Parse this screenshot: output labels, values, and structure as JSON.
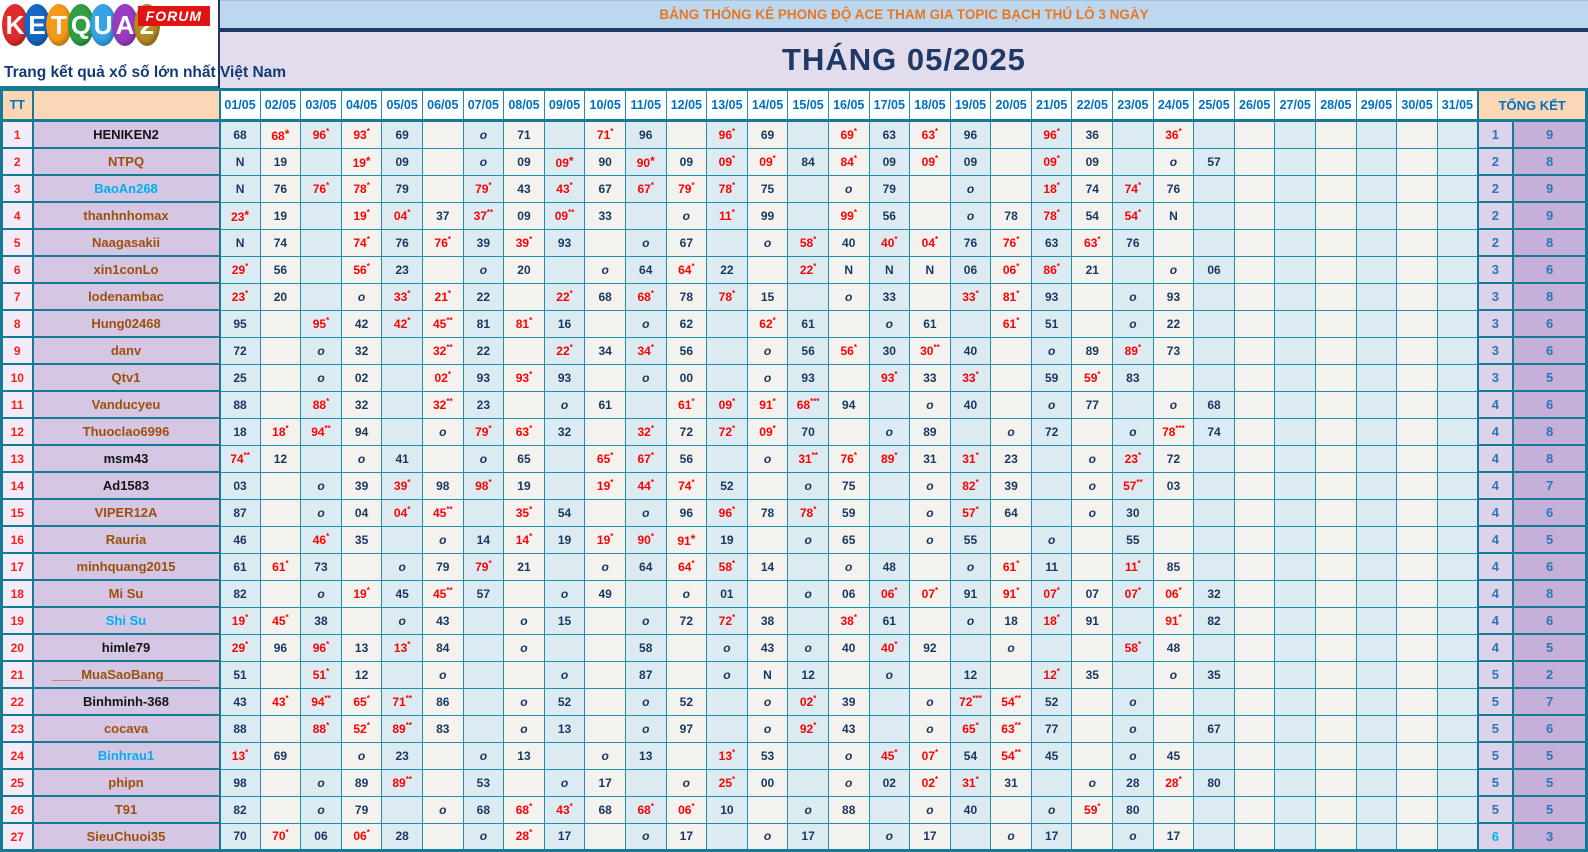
{
  "logo": {
    "letters": [
      {
        "ch": "K",
        "color": "#e02b2b"
      },
      {
        "ch": "E",
        "color": "#1767c5"
      },
      {
        "ch": "T",
        "color": "#f59a18"
      },
      {
        "ch": "Q",
        "color": "#2ea043"
      },
      {
        "ch": "U",
        "color": "#36a3e8"
      },
      {
        "ch": "A",
        "color": "#9b3bbf"
      },
      {
        "ch": "2",
        "color": "#b68a1f"
      }
    ],
    "forum_label": "FORUM",
    "tagline": "Trang kết quả xổ số lớn nhất Việt Nam"
  },
  "banner": {
    "subtitle": "BẢNG THỐNG KÊ PHONG ĐỘ ACE THAM GIA TOPIC BẠCH THỦ LÔ 3 NGÀY",
    "title": "THÁNG 05/2025"
  },
  "colors": {
    "grid_teal": "#157a96",
    "value_navy": "#17375e",
    "value_red": "#fe0000",
    "header_blue": "#0070c0",
    "summary_blue": "#2e75b6",
    "peach": "#fbd7b5",
    "name_bg": "#d5c6e4",
    "banner_top_bg": "#bdd7ee",
    "banner_title_bg": "#e2dcec",
    "banner_text_orange": "#e87722"
  },
  "table": {
    "tt_header": "TT",
    "summary_header": "TỔNG KẾT",
    "dates": [
      "01/05",
      "02/05",
      "03/05",
      "04/05",
      "05/05",
      "06/05",
      "07/05",
      "08/05",
      "09/05",
      "10/05",
      "11/05",
      "12/05",
      "13/05",
      "14/05",
      "15/05",
      "16/05",
      "17/05",
      "18/05",
      "19/05",
      "20/05",
      "21/05",
      "22/05",
      "23/05",
      "24/05",
      "25/05",
      "26/05",
      "27/05",
      "28/05",
      "29/05",
      "30/05",
      "31/05"
    ],
    "inline_star_cells": [
      "1-2",
      "2-4",
      "2-9",
      "2-11",
      "4-1",
      "16-12"
    ],
    "rows": [
      {
        "tt": "1",
        "name": "HENIKEN2",
        "name_color": "black",
        "days": [
          "68",
          "68*",
          "96*",
          "93*",
          "69",
          "",
          "o",
          "71",
          "",
          "71*",
          "96",
          "",
          "96*",
          "69",
          "",
          "69*",
          "63",
          "63*",
          "96",
          "",
          "96*",
          "36",
          "",
          "36*",
          "",
          "",
          "",
          "",
          "",
          "",
          ""
        ],
        "tk": [
          "1",
          "9"
        ]
      },
      {
        "tt": "2",
        "name": "NTPQ",
        "name_color": "brown",
        "days": [
          "N",
          "19",
          "",
          "19*",
          "09",
          "",
          "o",
          "09",
          "09*",
          "90",
          "90*",
          "09",
          "09*",
          "09*",
          "84",
          "84*",
          "09",
          "09*",
          "09",
          "",
          "09*",
          "09",
          "",
          "o",
          "57",
          "",
          "",
          "",
          "",
          "",
          ""
        ],
        "tk": [
          "2",
          "8"
        ]
      },
      {
        "tt": "3",
        "name": "BaoAn268",
        "name_color": "cyan",
        "days": [
          "N",
          "76",
          "76*",
          "78*",
          "79",
          "",
          "79*",
          "43",
          "43*",
          "67",
          "67*",
          "79*",
          "78*",
          "75",
          "",
          "o",
          "79",
          "",
          "o",
          "",
          "18*",
          "74",
          "74*",
          "76",
          "",
          "",
          "",
          "",
          "",
          "",
          ""
        ],
        "tk": [
          "2",
          "9"
        ]
      },
      {
        "tt": "4",
        "name": "thanhnhomax",
        "name_color": "brown",
        "days": [
          "23*",
          "19",
          "",
          "19*",
          "04*",
          "37",
          "37**",
          "09",
          "09**",
          "33",
          "",
          "o",
          "11*",
          "99",
          "",
          "99*",
          "56",
          "",
          "o",
          "78",
          "78*",
          "54",
          "54*",
          "N",
          "",
          "",
          "",
          "",
          "",
          "",
          ""
        ],
        "tk": [
          "2",
          "9"
        ]
      },
      {
        "tt": "5",
        "name": "Naagasakii",
        "name_color": "brown",
        "days": [
          "N",
          "74",
          "",
          "74*",
          "76",
          "76*",
          "39",
          "39*",
          "93",
          "",
          "o",
          "67",
          "",
          "o",
          "58*",
          "40",
          "40*",
          "04*",
          "76",
          "76*",
          "63",
          "63*",
          "76",
          "",
          "",
          "",
          "",
          "",
          "",
          "",
          ""
        ],
        "tk": [
          "2",
          "8"
        ]
      },
      {
        "tt": "6",
        "name": "xin1conLo",
        "name_color": "brown",
        "days": [
          "29*",
          "56",
          "",
          "56*",
          "23",
          "",
          "o",
          "20",
          "",
          "o",
          "64",
          "64*",
          "22",
          "",
          "22*",
          "N",
          "N",
          "N",
          "06",
          "06*",
          "86*",
          "21",
          "",
          "o",
          "06",
          "",
          "",
          "",
          "",
          "",
          ""
        ],
        "tk": [
          "3",
          "6"
        ]
      },
      {
        "tt": "7",
        "name": "lodenambac",
        "name_color": "brown",
        "days": [
          "23*",
          "20",
          "",
          "o",
          "33*",
          "21*",
          "22",
          "",
          "22*",
          "68",
          "68*",
          "78",
          "78*",
          "15",
          "",
          "o",
          "33",
          "",
          "33*",
          "81*",
          "93",
          "",
          "o",
          "93",
          "",
          "",
          "",
          "",
          "",
          "",
          ""
        ],
        "tk": [
          "3",
          "8"
        ]
      },
      {
        "tt": "8",
        "name": "Hung02468",
        "name_color": "brown",
        "days": [
          "95",
          "",
          "95*",
          "42",
          "42*",
          "45**",
          "81",
          "81*",
          "16",
          "",
          "o",
          "62",
          "",
          "62*",
          "61",
          "",
          "o",
          "61",
          "",
          "61*",
          "51",
          "",
          "o",
          "22",
          "",
          "",
          "",
          "",
          "",
          "",
          ""
        ],
        "tk": [
          "3",
          "6"
        ]
      },
      {
        "tt": "9",
        "name": "danv",
        "name_color": "brown",
        "days": [
          "72",
          "",
          "o",
          "32",
          "",
          "32**",
          "22",
          "",
          "22*",
          "34",
          "34*",
          "56",
          "",
          "o",
          "56",
          "56*",
          "30",
          "30**",
          "40",
          "",
          "o",
          "89",
          "89*",
          "73",
          "",
          "",
          "",
          "",
          "",
          "",
          ""
        ],
        "tk": [
          "3",
          "6"
        ]
      },
      {
        "tt": "10",
        "name": "Qtv1",
        "name_color": "brown",
        "days": [
          "25",
          "",
          "o",
          "02",
          "",
          "02*",
          "93",
          "93*",
          "93",
          "",
          "o",
          "00",
          "",
          "o",
          "93",
          "",
          "93*",
          "33",
          "33*",
          "",
          "59",
          "59*",
          "83",
          "",
          "",
          "",
          "",
          "",
          "",
          "",
          ""
        ],
        "tk": [
          "3",
          "5"
        ]
      },
      {
        "tt": "11",
        "name": "Vanducyeu",
        "name_color": "brown",
        "days": [
          "88",
          "",
          "88*",
          "32",
          "",
          "32**",
          "23",
          "",
          "o",
          "61",
          "",
          "61*",
          "09*",
          "91*",
          "68***",
          "94",
          "",
          "o",
          "40",
          "",
          "o",
          "77",
          "",
          "o",
          "68",
          "",
          "",
          "",
          "",
          "",
          ""
        ],
        "tk": [
          "4",
          "6"
        ]
      },
      {
        "tt": "12",
        "name": "Thuoclao6996",
        "name_color": "brown",
        "days": [
          "18",
          "18*",
          "94**",
          "94",
          "",
          "o",
          "79*",
          "63*",
          "32",
          "",
          "32*",
          "72",
          "72*",
          "09*",
          "70",
          "",
          "o",
          "89",
          "",
          "o",
          "72",
          "",
          "o",
          "78***",
          "74",
          "",
          "",
          "",
          "",
          "",
          ""
        ],
        "tk": [
          "4",
          "8"
        ]
      },
      {
        "tt": "13",
        "name": "msm43",
        "name_color": "black",
        "days": [
          "74**",
          "12",
          "",
          "o",
          "41",
          "",
          "o",
          "65",
          "",
          "65*",
          "67*",
          "56",
          "",
          "o",
          "31**",
          "76*",
          "89*",
          "31",
          "31*",
          "23",
          "",
          "o",
          "23*",
          "72",
          "",
          "",
          "",
          "",
          "",
          "",
          ""
        ],
        "tk": [
          "4",
          "8"
        ]
      },
      {
        "tt": "14",
        "name": "Ad1583",
        "name_color": "black",
        "days": [
          "03",
          "",
          "o",
          "39",
          "39*",
          "98",
          "98*",
          "19",
          "",
          "19*",
          "44*",
          "74*",
          "52",
          "",
          "o",
          "75",
          "",
          "o",
          "82*",
          "39",
          "",
          "o",
          "57**",
          "03",
          "",
          "",
          "",
          "",
          "",
          "",
          ""
        ],
        "tk": [
          "4",
          "7"
        ]
      },
      {
        "tt": "15",
        "name": "VIPER12A",
        "name_color": "brown",
        "days": [
          "87",
          "",
          "o",
          "04",
          "04*",
          "45**",
          "",
          "35*",
          "54",
          "",
          "o",
          "96",
          "96*",
          "78",
          "78*",
          "59",
          "",
          "o",
          "57*",
          "64",
          "",
          "o",
          "30",
          "",
          "",
          "",
          "",
          "",
          "",
          "",
          ""
        ],
        "tk": [
          "4",
          "6"
        ]
      },
      {
        "tt": "16",
        "name": "Rauria",
        "name_color": "brown",
        "days": [
          "46",
          "",
          "46*",
          "35",
          "",
          "o",
          "14",
          "14*",
          "19",
          "19*",
          "90*",
          "91*",
          "19",
          "",
          "o",
          "65",
          "",
          "o",
          "55",
          "",
          "o",
          "",
          "55",
          "",
          "",
          "",
          "",
          "",
          "",
          "",
          ""
        ],
        "tk": [
          "4",
          "5"
        ]
      },
      {
        "tt": "17",
        "name": "minhquang2015",
        "name_color": "brown",
        "days": [
          "61",
          "61*",
          "73",
          "",
          "o",
          "79",
          "79*",
          "21",
          "",
          "o",
          "64",
          "64*",
          "58*",
          "14",
          "",
          "o",
          "48",
          "",
          "o",
          "61*",
          "11",
          "",
          "11*",
          "85",
          "",
          "",
          "",
          "",
          "",
          "",
          ""
        ],
        "tk": [
          "4",
          "6"
        ]
      },
      {
        "tt": "18",
        "name": "Mi Su",
        "name_color": "brown",
        "days": [
          "82",
          "",
          "o",
          "19*",
          "45",
          "45**",
          "57",
          "",
          "o",
          "49",
          "",
          "o",
          "01",
          "",
          "o",
          "06",
          "06*",
          "07*",
          "91",
          "91*",
          "07*",
          "07",
          "07*",
          "06*",
          "32",
          "",
          "",
          "",
          "",
          "",
          ""
        ],
        "tk": [
          "4",
          "8"
        ]
      },
      {
        "tt": "19",
        "name": "Shi Su",
        "name_color": "cyan",
        "days": [
          "19*",
          "45*",
          "38",
          "",
          "o",
          "43",
          "",
          "o",
          "15",
          "",
          "o",
          "72",
          "72*",
          "38",
          "",
          "38*",
          "61",
          "",
          "o",
          "18",
          "18*",
          "91",
          "",
          "91*",
          "82",
          "",
          "",
          "",
          "",
          "",
          ""
        ],
        "tk": [
          "4",
          "6"
        ]
      },
      {
        "tt": "20",
        "name": "himle79",
        "name_color": "black",
        "days": [
          "29*",
          "96",
          "96*",
          "13",
          "13*",
          "84",
          "",
          "o",
          "",
          "",
          "58",
          "",
          "o",
          "43",
          "o",
          "40",
          "40*",
          "92",
          "",
          "o",
          "",
          "",
          "58*",
          "48",
          "",
          "",
          "",
          "",
          "",
          "",
          ""
        ],
        "tk": [
          "4",
          "5"
        ]
      },
      {
        "tt": "21",
        "name": "____MuaSaoBang_____",
        "name_color": "brown",
        "days": [
          "51",
          "",
          "51*",
          "12",
          "",
          "o",
          "",
          "",
          "o",
          "",
          "87",
          "",
          "o",
          "N",
          "12",
          "",
          "o",
          "",
          "12",
          "",
          "12*",
          "35",
          "",
          "o",
          "35",
          "",
          "",
          "",
          "",
          "",
          ""
        ],
        "tk": [
          "5",
          "2"
        ]
      },
      {
        "tt": "22",
        "name": "Binhminh-368",
        "name_color": "black",
        "days": [
          "43",
          "43*",
          "94**",
          "65*",
          "71**",
          "86",
          "",
          "o",
          "52",
          "",
          "o",
          "52",
          "",
          "o",
          "02*",
          "39",
          "",
          "o",
          "72***",
          "54**",
          "52",
          "",
          "o",
          "",
          "",
          "",
          "",
          "",
          "",
          "",
          ""
        ],
        "tk": [
          "5",
          "7"
        ]
      },
      {
        "tt": "23",
        "name": "cocava",
        "name_color": "brown",
        "days": [
          "88",
          "",
          "88*",
          "52*",
          "89**",
          "83",
          "",
          "o",
          "13",
          "",
          "o",
          "97",
          "",
          "o",
          "92*",
          "43",
          "",
          "o",
          "65*",
          "63**",
          "77",
          "",
          "o",
          "",
          "67",
          "",
          "",
          "",
          "",
          "",
          ""
        ],
        "tk": [
          "5",
          "6"
        ]
      },
      {
        "tt": "24",
        "name": "Binhrau1",
        "name_color": "cyan",
        "days": [
          "13*",
          "69",
          "",
          "o",
          "23",
          "",
          "o",
          "13",
          "",
          "o",
          "13",
          "",
          "13*",
          "53",
          "",
          "o",
          "45*",
          "07*",
          "54",
          "54**",
          "45",
          "",
          "o",
          "45",
          "",
          "",
          "",
          "",
          "",
          "",
          ""
        ],
        "tk": [
          "5",
          "5"
        ]
      },
      {
        "tt": "25",
        "name": "phipn",
        "name_color": "brown",
        "days": [
          "98",
          "",
          "o",
          "89",
          "89**",
          "",
          "53",
          "",
          "o",
          "17",
          "",
          "o",
          "25*",
          "00",
          "",
          "o",
          "02",
          "02*",
          "31*",
          "31",
          "",
          "o",
          "28",
          "28*",
          "80",
          "",
          "",
          "",
          "",
          "",
          ""
        ],
        "tk": [
          "5",
          "5"
        ]
      },
      {
        "tt": "26",
        "name": "T91",
        "name_color": "brown",
        "days": [
          "82",
          "",
          "o",
          "79",
          "",
          "o",
          "68",
          "68*",
          "43*",
          "68",
          "68*",
          "06*",
          "10",
          "",
          "o",
          "88",
          "",
          "o",
          "40",
          "",
          "o",
          "59*",
          "80",
          "",
          "",
          "",
          "",
          "",
          "",
          "",
          ""
        ],
        "tk": [
          "5",
          "5"
        ]
      },
      {
        "tt": "27",
        "name": "SieuChuoi35",
        "name_color": "brown",
        "days": [
          "70",
          "70*",
          "06",
          "06*",
          "28",
          "",
          "o",
          "28*",
          "17",
          "",
          "o",
          "17",
          "",
          "o",
          "17",
          "",
          "o",
          "17",
          "",
          "o",
          "17",
          "",
          "o",
          "17",
          "",
          "",
          "",
          "",
          "",
          "",
          ""
        ],
        "tk": [
          "6",
          "3"
        ],
        "tk_colors": [
          "#00b0f0",
          "#2e75b6"
        ]
      }
    ]
  }
}
